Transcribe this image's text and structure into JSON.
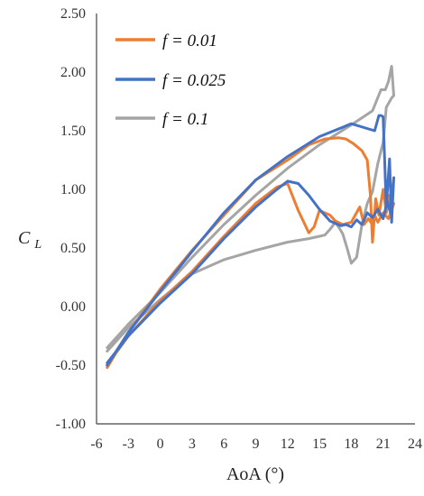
{
  "chart_data": {
    "type": "line",
    "xlabel": "AoA (°)",
    "ylabel_main": "C",
    "ylabel_sub": "L",
    "xlim": [
      -6,
      24
    ],
    "ylim": [
      -1.0,
      2.5
    ],
    "x_ticks": [
      "-6",
      "-3",
      "0",
      "3",
      "6",
      "9",
      "12",
      "15",
      "18",
      "21",
      "24"
    ],
    "y_ticks": [
      "-1.00",
      "-0.50",
      "0.00",
      "0.50",
      "1.00",
      "1.50",
      "2.00",
      "2.50"
    ],
    "grid": false,
    "legend_position": "top-left",
    "series": [
      {
        "name": "f = 0.01",
        "color": "#ED7D31",
        "x": [
          -5.0,
          -3.0,
          0.0,
          3.0,
          6.0,
          9.0,
          12.0,
          14.0,
          15.5,
          16.8,
          17.5,
          18.2,
          19.0,
          19.5,
          19.8,
          20.0,
          20.3,
          20.6,
          21.0,
          21.3,
          21.6,
          21.8,
          22.0,
          21.5,
          21.0,
          20.5,
          20.2,
          20.0,
          19.6,
          19.2,
          18.8,
          18.0,
          17.2,
          16.5,
          16.0,
          15.5,
          15.0,
          14.5,
          14.0,
          13.0,
          12.0,
          11.0,
          9.0,
          6.0,
          3.0,
          0.0,
          -3.0,
          -5.0
        ],
        "y": [
          -0.52,
          -0.22,
          0.15,
          0.48,
          0.78,
          1.08,
          1.25,
          1.38,
          1.43,
          1.44,
          1.43,
          1.39,
          1.33,
          1.25,
          0.95,
          0.55,
          0.92,
          0.78,
          1.0,
          0.8,
          0.95,
          0.82,
          0.88,
          0.75,
          0.8,
          0.72,
          0.78,
          0.7,
          0.75,
          0.7,
          0.85,
          0.72,
          0.7,
          0.73,
          0.78,
          0.8,
          0.82,
          0.68,
          0.63,
          0.82,
          1.05,
          1.02,
          0.88,
          0.6,
          0.3,
          0.05,
          -0.25,
          -0.5
        ]
      },
      {
        "name": "f = 0.025",
        "color": "#4472C4",
        "x": [
          -5.0,
          -3.0,
          0.0,
          3.0,
          6.0,
          9.0,
          12.0,
          15.0,
          18.0,
          20.2,
          20.6,
          20.8,
          21.0,
          21.3,
          21.6,
          21.8,
          22.0,
          21.7,
          21.4,
          21.0,
          20.5,
          20.0,
          19.5,
          19.0,
          18.5,
          18.0,
          17.5,
          17.0,
          16.0,
          15.0,
          14.0,
          13.0,
          12.0,
          11.0,
          9.0,
          6.0,
          3.0,
          0.0,
          -3.0,
          -5.0
        ],
        "y": [
          -0.5,
          -0.22,
          0.13,
          0.47,
          0.8,
          1.08,
          1.28,
          1.45,
          1.56,
          1.5,
          1.63,
          1.63,
          1.62,
          0.85,
          1.26,
          0.72,
          1.1,
          0.8,
          0.9,
          0.75,
          0.83,
          0.76,
          0.8,
          0.7,
          0.74,
          0.68,
          0.7,
          0.69,
          0.73,
          0.83,
          0.95,
          1.05,
          1.07,
          1.0,
          0.85,
          0.58,
          0.28,
          0.03,
          -0.25,
          -0.48
        ]
      },
      {
        "name": "f = 0.1",
        "color": "#A5A5A5",
        "x": [
          -5.0,
          -3.0,
          0.0,
          3.0,
          6.0,
          9.0,
          12.0,
          15.0,
          18.0,
          20.0,
          20.8,
          21.2,
          21.5,
          21.8,
          22.0,
          21.8,
          21.3,
          21.0,
          20.5,
          20.0,
          19.5,
          19.0,
          18.5,
          18.0,
          17.6,
          17.2,
          16.8,
          16.5,
          16.0,
          15.5,
          15.0,
          14.0,
          12.0,
          9.0,
          6.0,
          3.0,
          0.0,
          -3.0,
          -5.0
        ],
        "y": [
          -0.35,
          -0.15,
          0.12,
          0.42,
          0.7,
          0.95,
          1.18,
          1.38,
          1.55,
          1.67,
          1.85,
          1.85,
          1.92,
          2.05,
          1.8,
          1.78,
          1.7,
          1.4,
          1.22,
          0.98,
          0.88,
          0.7,
          0.42,
          0.37,
          0.5,
          0.62,
          0.68,
          0.72,
          0.66,
          0.61,
          0.6,
          0.58,
          0.55,
          0.48,
          0.4,
          0.28,
          0.06,
          -0.18,
          -0.38
        ]
      }
    ]
  }
}
